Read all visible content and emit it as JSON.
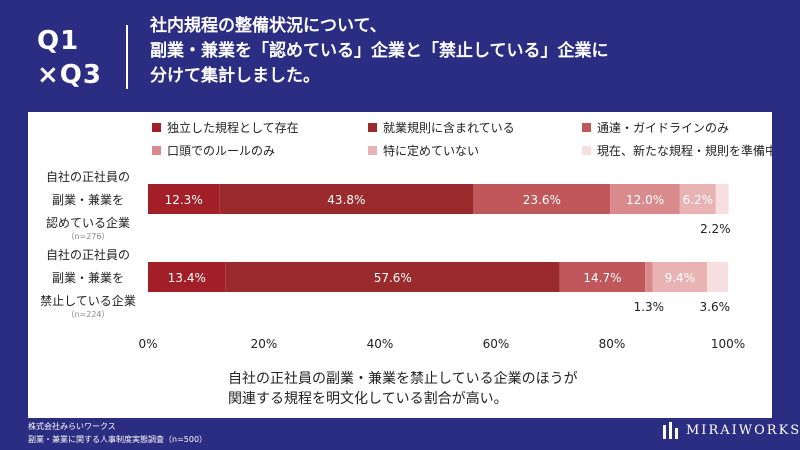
{
  "header": {
    "q_label_line1": "Q1",
    "q_label_line2": "×Q3",
    "title_line1": "社内規程の整備状況について、",
    "title_line2": "副業・兼業を「認めている」企業と「禁止している」企業に",
    "title_line3": "分けて集計しました。"
  },
  "colors": {
    "background": "#2a2d82",
    "series": [
      "#a31f28",
      "#9b2a2c",
      "#c0575a",
      "#d88a8c",
      "#e9b3b4",
      "#f7dedf"
    ]
  },
  "chart_data": {
    "type": "bar",
    "orientation": "horizontal",
    "stacked": true,
    "xlim": [
      0,
      100
    ],
    "xticks": [
      "0%",
      "20%",
      "40%",
      "60%",
      "80%",
      "100%"
    ],
    "legend_position": "top",
    "categories": [
      {
        "line1": "自社の正社員の",
        "line2": "副業・兼業を",
        "line3": "認めている企業",
        "n": "（n=276）"
      },
      {
        "line1": "自社の正社員の",
        "line2": "副業・兼業を",
        "line3": "禁止している企業",
        "n": "（n=224）"
      }
    ],
    "series": [
      {
        "name": "独立した規程として存在",
        "values": [
          12.3,
          13.4
        ],
        "labels": [
          "12.3%",
          "13.4%"
        ]
      },
      {
        "name": "就業規則に含まれている",
        "values": [
          43.8,
          57.6
        ],
        "labels": [
          "43.8%",
          "57.6%"
        ]
      },
      {
        "name": "通達・ガイドラインのみ",
        "values": [
          23.6,
          14.7
        ],
        "labels": [
          "23.6%",
          "14.7%"
        ]
      },
      {
        "name": "口頭でのルールのみ",
        "values": [
          12.0,
          1.3
        ],
        "labels": [
          "12.0%",
          "1.3%"
        ]
      },
      {
        "name": "特に定めていない",
        "values": [
          6.2,
          9.4
        ],
        "labels": [
          "6.2%",
          "9.4%"
        ]
      },
      {
        "name": "現在、新たな規程・規則を準備中",
        "values": [
          2.2,
          3.6
        ],
        "labels": [
          "2.2%",
          "3.6%"
        ]
      }
    ]
  },
  "conclusion": {
    "line1": "自社の正社員の副業・兼業を禁止している企業のほうが",
    "line2": "関連する規程を明文化している割合が高い。"
  },
  "footer": {
    "company": "株式会社みらいワークス",
    "survey": "副業・兼業に関する人事制度実態調査（n=500）",
    "logo_text": "MIRAIWORKS"
  }
}
